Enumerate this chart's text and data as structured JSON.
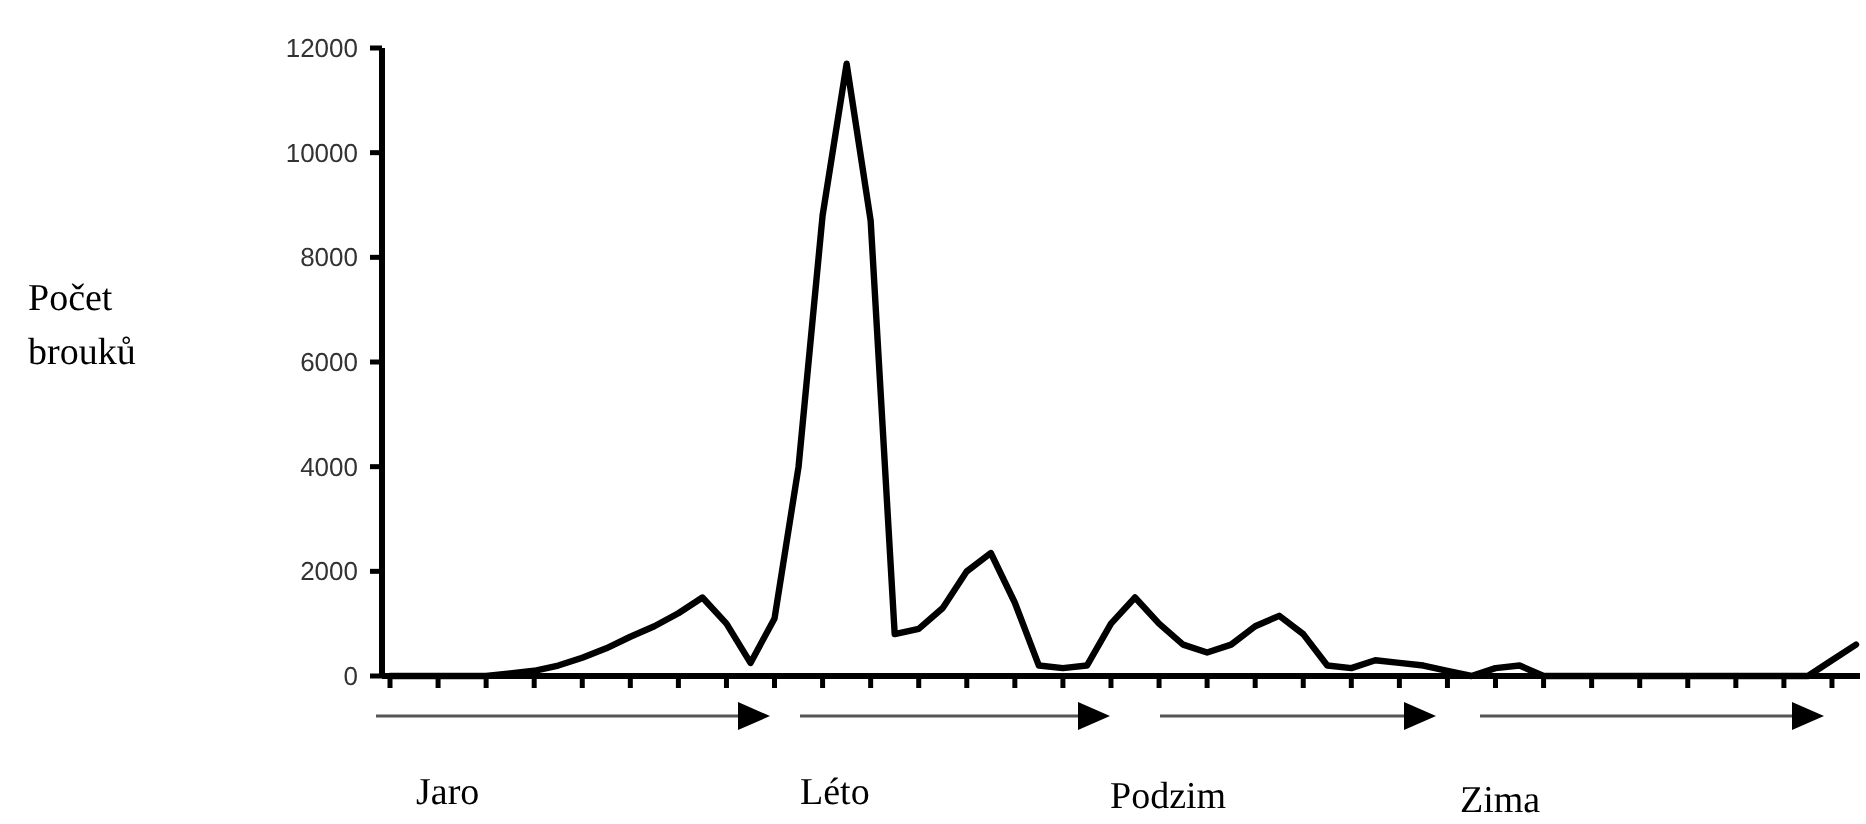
{
  "chart_data": {
    "type": "line",
    "ylabel": "Počet brouků",
    "ylim": [
      0,
      12000
    ],
    "yticks": [
      0,
      2000,
      4000,
      6000,
      8000,
      10000,
      12000
    ],
    "categories": [
      null,
      null,
      null,
      null,
      null,
      null,
      null,
      null,
      null,
      null,
      null,
      null,
      null,
      null,
      null,
      null,
      null,
      null,
      null,
      null,
      null,
      null,
      null,
      null,
      null,
      null,
      null,
      null,
      null,
      null,
      null,
      null,
      null,
      null,
      null,
      null,
      null,
      null,
      null,
      null,
      null,
      null,
      null,
      null,
      null,
      null,
      null,
      null,
      null,
      null,
      null,
      null,
      null,
      null,
      null,
      null,
      null,
      null,
      null,
      null,
      null,
      null
    ],
    "tick_labels": "y",
    "grid": false,
    "marker": "none",
    "line_style": "solid",
    "series": [
      {
        "color": "#000000",
        "values": [
          0,
          0,
          0,
          0,
          0,
          50,
          100,
          200,
          350,
          530,
          750,
          950,
          1200,
          1500,
          1000,
          250,
          1100,
          4000,
          8800,
          11700,
          8700,
          800,
          900,
          1300,
          2000,
          2350,
          1400,
          200,
          150,
          200,
          1000,
          1500,
          1000,
          600,
          450,
          600,
          950,
          1150,
          800,
          200,
          150,
          300,
          250,
          200,
          100,
          0,
          150,
          200,
          0,
          0,
          0,
          0,
          0,
          0,
          0,
          0,
          0,
          0,
          0,
          0,
          300,
          600
        ]
      }
    ],
    "annotations": [
      "Jaro",
      "Léto",
      "Podzim",
      "Zima"
    ]
  }
}
